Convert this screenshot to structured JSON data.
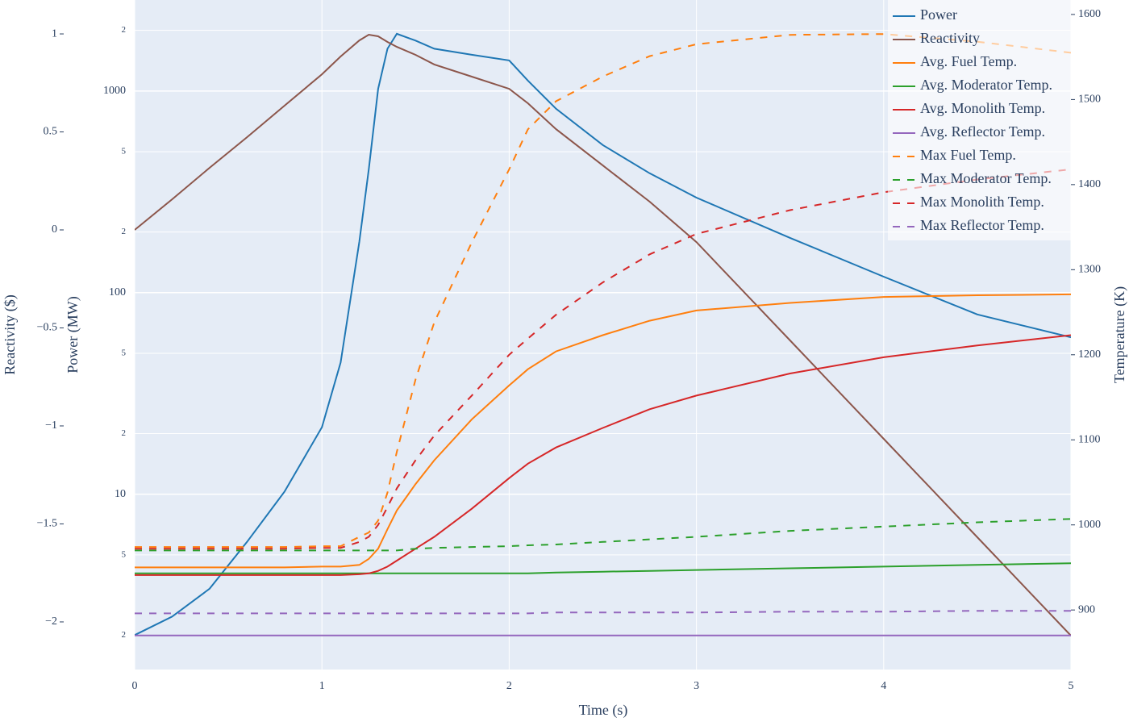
{
  "chart_data": {
    "type": "line",
    "x_label": "Time (s)",
    "y_label": "Power (MW)",
    "y2_label": "Temperature (K)",
    "y3_label": "Reactivity ($)",
    "x": [
      0,
      0.2,
      0.4,
      0.6,
      0.8,
      1,
      1.1,
      1.2,
      1.25,
      1.3,
      1.35,
      1.4,
      1.5,
      1.6,
      1.8,
      2,
      2.1,
      2.25,
      2.5,
      2.75,
      3,
      3.5,
      4,
      4.5,
      5
    ],
    "xlim": [
      0,
      5
    ],
    "xticks": [
      0,
      1,
      2,
      3,
      4,
      5
    ],
    "ylog": true,
    "ylim": [
      1.35,
      2830
    ],
    "yticks": [
      {
        "value": 2,
        "label": "2"
      },
      5,
      10,
      {
        "value": 20,
        "label": "2"
      },
      {
        "value": 50,
        "label": "5"
      },
      100,
      {
        "value": 200,
        "label": "2"
      },
      {
        "value": 500,
        "label": "5"
      },
      1000,
      {
        "value": 2000,
        "label": "2"
      }
    ],
    "y2lim": [
      830,
      1617
    ],
    "y2ticks": [
      900,
      1000,
      1100,
      1200,
      1300,
      1400,
      1500,
      1600
    ],
    "y3lim": [
      -2.243,
      1.173
    ],
    "y3ticks": [
      {
        "value": -2,
        "label": "−2"
      },
      {
        "value": -1.5,
        "label": "−1.5"
      },
      {
        "value": -1,
        "label": "−1"
      },
      {
        "value": -0.5,
        "label": "−0.5"
      },
      0,
      0.5,
      1
    ],
    "grid": true,
    "legend": "top-right",
    "series": [
      {
        "name": "Power",
        "color": "#1f77b4",
        "dash": false,
        "axis": "y",
        "values": [
          2,
          2.47,
          3.4,
          5.8,
          10.3,
          21.5,
          45,
          179,
          409,
          1025,
          1622,
          1923,
          1780,
          1622,
          1514,
          1419,
          1127,
          817,
          540,
          391,
          296,
          187,
          120,
          78,
          60
        ]
      },
      {
        "name": "Reactivity",
        "color": "#8c564b",
        "dash": false,
        "axis": "y3",
        "values": [
          0,
          0.156,
          0.317,
          0.473,
          0.634,
          0.794,
          0.885,
          0.967,
          0.996,
          0.988,
          0.959,
          0.934,
          0.893,
          0.844,
          0.782,
          0.72,
          0.646,
          0.514,
          0.329,
          0.144,
          -0.062,
          -0.564,
          -1.066,
          -1.568,
          -2.07
        ]
      },
      {
        "name": "Avg. Fuel Temp.",
        "color": "#ff7f0e",
        "dash": false,
        "axis": "y2",
        "values": [
          950,
          950,
          950,
          950,
          950,
          951,
          951,
          953,
          960,
          972,
          995,
          1017,
          1048,
          1076,
          1124,
          1164,
          1183,
          1204,
          1223,
          1240,
          1252,
          1261,
          1268,
          1270,
          1271
        ]
      },
      {
        "name": "Avg. Moderator Temp.",
        "color": "#2ca02c",
        "dash": false,
        "axis": "y2",
        "values": [
          943,
          943,
          943,
          943,
          943,
          943,
          943,
          943,
          943,
          943,
          943,
          943,
          943,
          943,
          943,
          943,
          943,
          944,
          945,
          946,
          947,
          949,
          951,
          953,
          955
        ]
      },
      {
        "name": "Avg. Monolith Temp.",
        "color": "#d62728",
        "dash": false,
        "axis": "y2",
        "values": [
          941,
          941,
          941,
          941,
          941,
          941,
          941,
          942,
          943,
          946,
          951,
          958,
          972,
          986,
          1019,
          1055,
          1072,
          1091,
          1114,
          1136,
          1152,
          1178,
          1197,
          1211,
          1223
        ]
      },
      {
        "name": "Avg. Reflector Temp.",
        "color": "#9467bd",
        "dash": false,
        "axis": "y2",
        "values": [
          870,
          870,
          870,
          870,
          870,
          870,
          870,
          870,
          870,
          870,
          870,
          870,
          870,
          870,
          870,
          870,
          870,
          870,
          870,
          870,
          870,
          870,
          870,
          870,
          870
        ]
      },
      {
        "name": "Max Fuel Temp.",
        "color": "#ff7f0e",
        "dash": true,
        "axis": "y2",
        "values": [
          974,
          974,
          974,
          974,
          974,
          975,
          975,
          986,
          991,
          1005,
          1038,
          1086,
          1171,
          1238,
          1332,
          1418,
          1465,
          1498,
          1527,
          1551,
          1565,
          1576,
          1577,
          1568,
          1555
        ]
      },
      {
        "name": "Max Moderator Temp.",
        "color": "#2ca02c",
        "dash": true,
        "axis": "y2",
        "values": [
          970,
          970,
          970,
          970,
          970,
          970,
          970,
          970,
          970,
          970,
          970,
          970,
          972,
          973,
          974,
          975,
          976,
          977,
          980,
          983,
          986,
          993,
          998,
          1003,
          1007
        ]
      },
      {
        "name": "Max Monolith Temp.",
        "color": "#d62728",
        "dash": true,
        "axis": "y2",
        "values": [
          972,
          972,
          972,
          972,
          972,
          973,
          973,
          980,
          986,
          1000,
          1021,
          1043,
          1076,
          1105,
          1152,
          1200,
          1219,
          1247,
          1285,
          1318,
          1342,
          1370,
          1391,
          1406,
          1418
        ]
      },
      {
        "name": "Max Reflector Temp.",
        "color": "#9467bd",
        "dash": true,
        "axis": "y2",
        "values": [
          896,
          896,
          896,
          896,
          896,
          896,
          896,
          896,
          896,
          896,
          896,
          896,
          896,
          896,
          896,
          896,
          896,
          897,
          897,
          897,
          897,
          898,
          898,
          899,
          899
        ]
      }
    ]
  }
}
